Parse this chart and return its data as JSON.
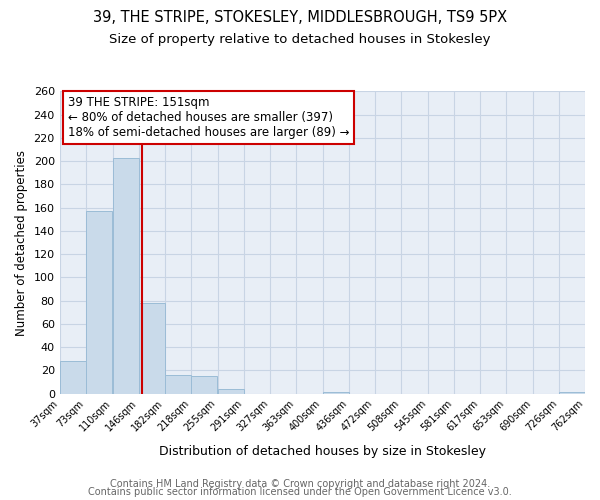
{
  "title": "39, THE STRIPE, STOKESLEY, MIDDLESBROUGH, TS9 5PX",
  "subtitle": "Size of property relative to detached houses in Stokesley",
  "xlabel": "Distribution of detached houses by size in Stokesley",
  "ylabel": "Number of detached properties",
  "bar_left_edges": [
    37,
    73,
    110,
    146,
    182,
    218,
    255,
    291,
    327,
    363,
    400,
    436,
    472,
    508,
    545,
    581,
    617,
    653,
    690,
    726
  ],
  "bar_heights": [
    28,
    157,
    203,
    78,
    16,
    15,
    4,
    0,
    0,
    0,
    1,
    0,
    0,
    0,
    0,
    0,
    0,
    0,
    0,
    1
  ],
  "bin_width": 36,
  "bar_color": "#c9daea",
  "bar_edge_color": "#9bbcd6",
  "property_line_x": 151,
  "property_line_color": "#cc0000",
  "annotation_text": "39 THE STRIPE: 151sqm\n← 80% of detached houses are smaller (397)\n18% of semi-detached houses are larger (89) →",
  "annotation_box_color": "#ffffff",
  "annotation_box_edge_color": "#cc0000",
  "ylim": [
    0,
    260
  ],
  "yticks": [
    0,
    20,
    40,
    60,
    80,
    100,
    120,
    140,
    160,
    180,
    200,
    220,
    240,
    260
  ],
  "xtick_labels": [
    "37sqm",
    "73sqm",
    "110sqm",
    "146sqm",
    "182sqm",
    "218sqm",
    "255sqm",
    "291sqm",
    "327sqm",
    "363sqm",
    "400sqm",
    "436sqm",
    "472sqm",
    "508sqm",
    "545sqm",
    "581sqm",
    "617sqm",
    "653sqm",
    "690sqm",
    "726sqm",
    "762sqm"
  ],
  "bg_color": "#e8eef6",
  "grid_color": "#c8d4e4",
  "footer_line1": "Contains HM Land Registry data © Crown copyright and database right 2024.",
  "footer_line2": "Contains public sector information licensed under the Open Government Licence v3.0.",
  "title_fontsize": 10.5,
  "subtitle_fontsize": 9.5,
  "xlabel_fontsize": 9,
  "ylabel_fontsize": 8.5,
  "annotation_fontsize": 8.5,
  "footer_fontsize": 7,
  "xtick_fontsize": 7,
  "ytick_fontsize": 8
}
